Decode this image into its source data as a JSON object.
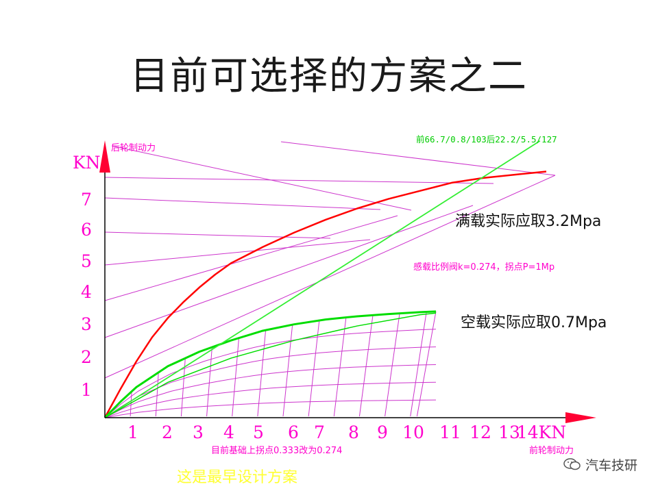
{
  "title": "目前可选择的方案之二",
  "watermark": "汽车技研",
  "colors": {
    "axis": "#ff0033",
    "grid": "#cc33cc",
    "full_load_curve": "#ff0000",
    "empty_load_curve": "#00dd00",
    "ideal_line": "#33ee33",
    "label": "#ff00cc"
  },
  "chart_data": {
    "type": "line",
    "x_unit_label": "14KN",
    "y_unit_label": "KN",
    "x_ticks": [
      "1",
      "2",
      "3",
      "4",
      "5",
      "6",
      "7",
      "8",
      "9",
      "10",
      "11",
      "12",
      "13",
      "14KN"
    ],
    "y_ticks": [
      "1",
      "2",
      "3",
      "4",
      "5",
      "6",
      "7"
    ],
    "xlabel": "前轮制动力",
    "ylabel": "后轮制动力",
    "xlim": [
      0,
      14
    ],
    "ylim": [
      0,
      7.5
    ],
    "series": [
      {
        "name": "满载实际应取3.2Mpa",
        "points": [
          [
            0,
            0
          ],
          [
            0.5,
            0.9
          ],
          [
            1,
            1.75
          ],
          [
            1.5,
            2.5
          ],
          [
            2,
            3.1
          ],
          [
            2.5,
            3.6
          ],
          [
            3,
            4.05
          ],
          [
            3.5,
            4.45
          ],
          [
            4,
            4.8
          ],
          [
            5,
            5.3
          ],
          [
            6,
            5.75
          ],
          [
            7,
            6.15
          ],
          [
            8,
            6.5
          ],
          [
            9,
            6.8
          ],
          [
            10,
            7.05
          ],
          [
            11,
            7.3
          ],
          [
            12,
            7.45
          ],
          [
            13,
            7.55
          ],
          [
            14,
            7.65
          ]
        ]
      },
      {
        "name": "空载实际应取0.7Mpa",
        "points": [
          [
            0,
            0
          ],
          [
            0.5,
            0.5
          ],
          [
            1,
            0.95
          ],
          [
            2,
            1.6
          ],
          [
            3,
            2.05
          ],
          [
            4,
            2.4
          ],
          [
            5,
            2.7
          ],
          [
            6,
            2.9
          ],
          [
            7,
            3.05
          ],
          [
            8,
            3.15
          ],
          [
            9,
            3.22
          ],
          [
            10,
            3.28
          ],
          [
            10.5,
            3.3
          ]
        ]
      },
      {
        "name": "前66.7/0.8/103后22.2/5.5/127",
        "points": [
          [
            0,
            0
          ],
          [
            13.8,
            8.6
          ]
        ]
      }
    ],
    "annotations": [
      "前66.7/0.8/103后22.2/5.5/127",
      "满载实际应取3.2Mpa",
      "感载比例阀k=0.274，拐点P=1Mp",
      "空载实际应取0.7Mpa",
      "目前基础上拐点0.333改为0.274",
      "这是最早设计方案"
    ]
  }
}
